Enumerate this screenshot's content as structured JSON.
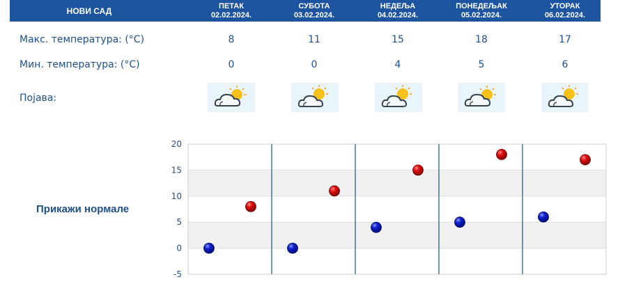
{
  "header": {
    "city": "НОВИ САД",
    "days": [
      {
        "name": "ПЕТАК",
        "date": "02.02.2024."
      },
      {
        "name": "СУБОТА",
        "date": "03.02.2024."
      },
      {
        "name": "НЕДЕЉА",
        "date": "04.02.2024."
      },
      {
        "name": "ПОНЕДЕЉАК",
        "date": "05.02.2024."
      },
      {
        "name": "УТОРАК",
        "date": "06.02.2024."
      }
    ]
  },
  "rows": {
    "max_label": "Макс. температура: (°C)",
    "min_label": "Мин. температура: (°C)",
    "phenomenon_label": "Појава:"
  },
  "max_temps": [
    "8",
    "11",
    "15",
    "18",
    "17"
  ],
  "min_temps": [
    "0",
    "0",
    "4",
    "5",
    "6"
  ],
  "phenomena_icons": [
    "partly-cloudy-icon",
    "partly-cloudy-icon",
    "partly-cloudy-icon",
    "partly-cloudy-icon",
    "partly-cloudy-icon"
  ],
  "normals_link": "Прикажи нормале",
  "colors": {
    "header_bg": "#1d54a0",
    "text": "#1f4f8a",
    "max_point": "#cc0000",
    "min_point": "#1a22b8"
  },
  "chart_data": {
    "type": "scatter",
    "categories": [
      "02.02.2024.",
      "03.02.2024.",
      "04.02.2024.",
      "05.02.2024.",
      "06.02.2024."
    ],
    "series": [
      {
        "values": [
          0,
          0,
          4,
          5,
          6
        ]
      },
      {
        "values": [
          8,
          11,
          15,
          18,
          17
        ]
      }
    ],
    "yticks": [
      "20",
      "15",
      "10",
      "5",
      "0",
      "-5"
    ],
    "ylim": [
      -5,
      20
    ],
    "grid": true,
    "legend": "none"
  }
}
